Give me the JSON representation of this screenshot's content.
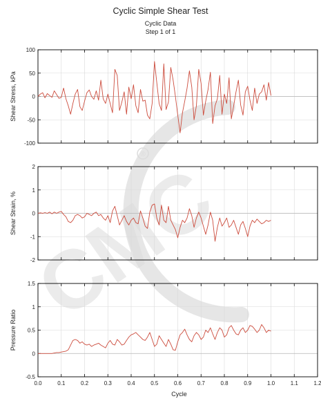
{
  "header": {
    "title": "Cyclic Simple Shear Test",
    "subtitle1": "Cyclic Data",
    "subtitle2": "Step 1 of 1"
  },
  "colors": {
    "series": "#cc4b3c",
    "grid": "#d9d9d9",
    "axis": "#000000",
    "watermark": "#dcdcdc"
  },
  "watermark": {
    "text": "CMC",
    "mark": "®"
  },
  "chart_data": [
    {
      "type": "line",
      "ylabel": "Shear Stress, kPa",
      "xlim": [
        0,
        1.2
      ],
      "ylim": [
        -100,
        100
      ],
      "yticks": [
        -100,
        -50,
        0,
        50,
        100
      ],
      "grid": true,
      "series": [
        {
          "x": [
            0,
            0.01,
            0.02,
            0.03,
            0.04,
            0.05,
            0.06,
            0.07,
            0.08,
            0.09,
            0.1,
            0.11,
            0.12,
            0.13,
            0.14,
            0.15,
            0.16,
            0.17,
            0.18,
            0.19,
            0.2,
            0.21,
            0.22,
            0.23,
            0.24,
            0.25,
            0.26,
            0.27,
            0.28,
            0.29,
            0.3,
            0.31,
            0.32,
            0.33,
            0.34,
            0.35,
            0.36,
            0.37,
            0.38,
            0.39,
            0.4,
            0.41,
            0.42,
            0.43,
            0.44,
            0.45,
            0.46,
            0.47,
            0.48,
            0.49,
            0.5,
            0.51,
            0.52,
            0.53,
            0.54,
            0.55,
            0.56,
            0.57,
            0.58,
            0.59,
            0.6,
            0.61,
            0.62,
            0.63,
            0.64,
            0.65,
            0.66,
            0.67,
            0.68,
            0.69,
            0.7,
            0.71,
            0.72,
            0.73,
            0.74,
            0.75,
            0.76,
            0.77,
            0.78,
            0.79,
            0.8,
            0.81,
            0.82,
            0.83,
            0.84,
            0.85,
            0.86,
            0.87,
            0.88,
            0.89,
            0.9,
            0.91,
            0.92,
            0.93,
            0.94,
            0.95,
            0.96,
            0.97,
            0.98,
            0.99,
            1.0
          ],
          "y": [
            0,
            5,
            8,
            -3,
            6,
            2,
            -2,
            12,
            4,
            -4,
            -2,
            18,
            -5,
            -20,
            -38,
            -15,
            5,
            15,
            -22,
            -30,
            -10,
            8,
            14,
            0,
            -6,
            12,
            -8,
            35,
            -5,
            -15,
            5,
            -15,
            -35,
            58,
            45,
            -30,
            -12,
            10,
            -38,
            20,
            -5,
            25,
            -20,
            -35,
            15,
            -10,
            -8,
            -40,
            -48,
            -15,
            75,
            30,
            -15,
            -30,
            70,
            -28,
            -12,
            62,
            35,
            0,
            -40,
            -78,
            -35,
            -10,
            18,
            55,
            20,
            -50,
            -20,
            58,
            28,
            -40,
            -10,
            15,
            52,
            -58,
            -20,
            -5,
            45,
            -38,
            5,
            -15,
            40,
            -48,
            -20,
            10,
            35,
            -18,
            -40,
            10,
            22,
            -8,
            -30,
            18,
            -15,
            5,
            10,
            25,
            -8,
            30,
            2
          ]
        }
      ]
    },
    {
      "type": "line",
      "ylabel": "Shear Strain, %",
      "xlim": [
        0,
        1.2
      ],
      "ylim": [
        -2,
        2
      ],
      "yticks": [
        -2,
        -1,
        0,
        1,
        2
      ],
      "grid": true,
      "series": [
        {
          "x": [
            0,
            0.01,
            0.02,
            0.03,
            0.04,
            0.05,
            0.06,
            0.07,
            0.08,
            0.09,
            0.1,
            0.11,
            0.12,
            0.13,
            0.14,
            0.15,
            0.16,
            0.17,
            0.18,
            0.19,
            0.2,
            0.21,
            0.22,
            0.23,
            0.24,
            0.25,
            0.26,
            0.27,
            0.28,
            0.29,
            0.3,
            0.31,
            0.32,
            0.33,
            0.34,
            0.35,
            0.36,
            0.37,
            0.38,
            0.39,
            0.4,
            0.41,
            0.42,
            0.43,
            0.44,
            0.45,
            0.46,
            0.47,
            0.48,
            0.49,
            0.5,
            0.51,
            0.52,
            0.53,
            0.54,
            0.55,
            0.56,
            0.57,
            0.58,
            0.59,
            0.6,
            0.61,
            0.62,
            0.63,
            0.64,
            0.65,
            0.66,
            0.67,
            0.68,
            0.69,
            0.7,
            0.71,
            0.72,
            0.73,
            0.74,
            0.75,
            0.76,
            0.77,
            0.78,
            0.79,
            0.8,
            0.81,
            0.82,
            0.83,
            0.84,
            0.85,
            0.86,
            0.87,
            0.88,
            0.89,
            0.9,
            0.91,
            0.92,
            0.93,
            0.94,
            0.95,
            0.96,
            0.97,
            0.98,
            0.99,
            1.0
          ],
          "y": [
            0,
            0.02,
            0,
            0.03,
            0,
            0.05,
            -0.02,
            0.05,
            0,
            0.05,
            0.08,
            -0.05,
            -0.15,
            -0.35,
            -0.4,
            -0.3,
            -0.1,
            -0.05,
            -0.1,
            -0.2,
            -0.15,
            0,
            -0.05,
            -0.1,
            0,
            0.05,
            -0.1,
            -0.05,
            -0.2,
            -0.3,
            -0.1,
            -0.4,
            0.1,
            0.3,
            -0.1,
            -0.5,
            -0.3,
            -0.1,
            -0.35,
            -0.5,
            -0.3,
            -0.2,
            -0.4,
            -0.45,
            0.1,
            -0.2,
            -0.55,
            -0.65,
            0.05,
            0.35,
            0.4,
            -0.2,
            -0.5,
            0.35,
            -0.3,
            -0.4,
            0.3,
            -0.3,
            -0.5,
            -0.7,
            -1.05,
            -0.6,
            -0.3,
            -0.4,
            -0.2,
            0.2,
            -0.1,
            -0.6,
            -0.2,
            0.05,
            -0.2,
            -0.55,
            -0.9,
            -0.5,
            0.05,
            -0.3,
            -1.2,
            -0.6,
            -0.2,
            -0.55,
            -0.4,
            -0.2,
            -0.6,
            -0.5,
            -0.3,
            -0.6,
            -0.9,
            -0.5,
            -0.35,
            -0.65,
            -1.0,
            -0.55,
            -0.3,
            -0.4,
            -0.25,
            -0.35,
            -0.45,
            -0.4,
            -0.3,
            -0.35,
            -0.3
          ]
        }
      ]
    },
    {
      "type": "line",
      "ylabel": "Pressure Ratio",
      "xlabel": "Cycle",
      "xlim": [
        0,
        1.2
      ],
      "ylim": [
        -0.5,
        1.5
      ],
      "yticks": [
        -0.5,
        0,
        0.5,
        1,
        1.5
      ],
      "xticks": [
        0,
        0.1,
        0.2,
        0.3,
        0.4,
        0.5,
        0.6,
        0.7,
        0.8,
        0.9,
        1.0,
        1.1,
        1.2
      ],
      "xticklabels": [
        "0.0",
        "0.1",
        "0.2",
        "0.3",
        "0.4",
        "0.5",
        "0.6",
        "0.7",
        "0.8",
        "0.9",
        "1.0",
        "1.1",
        "1.2"
      ],
      "grid": true,
      "series": [
        {
          "x": [
            0,
            0.01,
            0.02,
            0.03,
            0.04,
            0.05,
            0.06,
            0.07,
            0.08,
            0.09,
            0.1,
            0.11,
            0.12,
            0.13,
            0.14,
            0.15,
            0.16,
            0.17,
            0.18,
            0.19,
            0.2,
            0.21,
            0.22,
            0.23,
            0.24,
            0.25,
            0.26,
            0.27,
            0.28,
            0.29,
            0.3,
            0.31,
            0.32,
            0.33,
            0.34,
            0.35,
            0.36,
            0.37,
            0.38,
            0.39,
            0.4,
            0.41,
            0.42,
            0.43,
            0.44,
            0.45,
            0.46,
            0.47,
            0.48,
            0.49,
            0.5,
            0.51,
            0.52,
            0.53,
            0.54,
            0.55,
            0.56,
            0.57,
            0.58,
            0.59,
            0.6,
            0.61,
            0.62,
            0.63,
            0.64,
            0.65,
            0.66,
            0.67,
            0.68,
            0.69,
            0.7,
            0.71,
            0.72,
            0.73,
            0.74,
            0.75,
            0.76,
            0.77,
            0.78,
            0.79,
            0.8,
            0.81,
            0.82,
            0.83,
            0.84,
            0.85,
            0.86,
            0.87,
            0.88,
            0.89,
            0.9,
            0.91,
            0.92,
            0.93,
            0.94,
            0.95,
            0.96,
            0.97,
            0.98,
            0.99,
            1.0
          ],
          "y": [
            0,
            0,
            0,
            0,
            0,
            0,
            0,
            0.01,
            0.02,
            0.02,
            0.03,
            0.04,
            0.05,
            0.08,
            0.18,
            0.28,
            0.3,
            0.28,
            0.22,
            0.25,
            0.2,
            0.18,
            0.2,
            0.15,
            0.18,
            0.2,
            0.22,
            0.18,
            0.15,
            0.12,
            0.22,
            0.28,
            0.2,
            0.18,
            0.3,
            0.25,
            0.18,
            0.2,
            0.28,
            0.35,
            0.4,
            0.42,
            0.45,
            0.4,
            0.35,
            0.3,
            0.28,
            0.35,
            0.45,
            0.3,
            0.15,
            0.2,
            0.38,
            0.3,
            0.22,
            0.15,
            0.3,
            0.2,
            0.08,
            0.07,
            0.25,
            0.4,
            0.45,
            0.52,
            0.4,
            0.3,
            0.25,
            0.38,
            0.45,
            0.4,
            0.3,
            0.35,
            0.5,
            0.45,
            0.55,
            0.42,
            0.3,
            0.45,
            0.55,
            0.5,
            0.35,
            0.4,
            0.55,
            0.6,
            0.5,
            0.42,
            0.4,
            0.5,
            0.55,
            0.45,
            0.5,
            0.6,
            0.58,
            0.52,
            0.45,
            0.5,
            0.62,
            0.55,
            0.45,
            0.5,
            0.48
          ]
        }
      ]
    }
  ]
}
